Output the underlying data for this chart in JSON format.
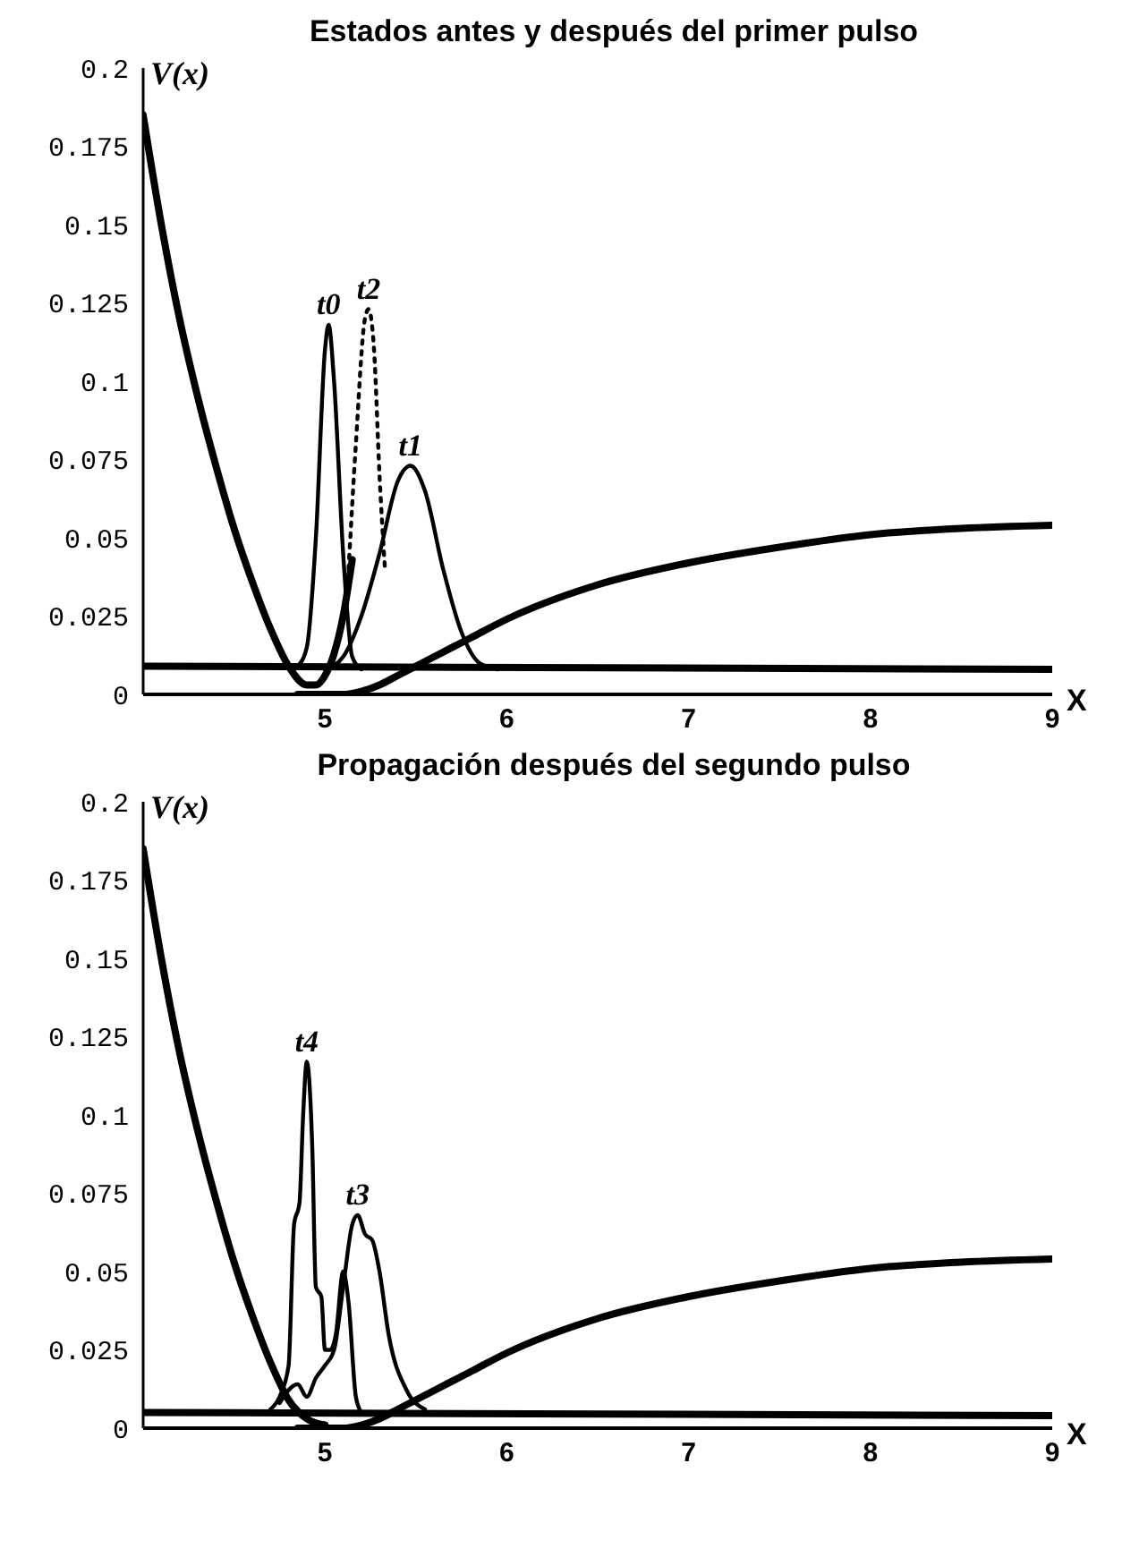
{
  "chart_data": [
    {
      "type": "line",
      "title": "Estados antes y después del primer pulso",
      "xlabel": "X",
      "ylabel": "V(x)",
      "xlim": [
        4,
        9
      ],
      "xticks": [
        5,
        6,
        7,
        8,
        9
      ],
      "ylim": [
        0,
        0.2
      ],
      "yticks": [
        0,
        0.025,
        0.05,
        0.075,
        0.1,
        0.125,
        0.15,
        0.175,
        0.2
      ],
      "grid": false,
      "legend": false,
      "marker": "none",
      "series": [
        {
          "color": "#000000",
          "x": [
            4,
            4.1,
            4.2,
            4.3,
            4.4,
            4.5,
            4.6,
            4.7,
            4.8,
            4.9,
            4.95,
            5.0,
            5.05,
            5.1,
            5.15
          ],
          "values": [
            0.185,
            0.15,
            0.12,
            0.095,
            0.073,
            0.053,
            0.036,
            0.021,
            0.009,
            0.003,
            0.003,
            0.006,
            0.013,
            0.025,
            0.043
          ]
        },
        {
          "color": "#000000",
          "x": [
            4.85,
            5.0,
            5.1,
            5.2,
            5.3,
            5.4,
            5.6,
            5.8,
            6,
            6.5,
            7,
            7.5,
            8,
            8.5,
            9
          ],
          "values": [
            0.0,
            0.0,
            0.0,
            0.001,
            0.003,
            0.006,
            0.012,
            0.018,
            0.024,
            0.035,
            0.042,
            0.047,
            0.051,
            0.053,
            0.054
          ]
        },
        {
          "color": "#000000",
          "x": [
            4,
            9
          ],
          "values": [
            0.009,
            0.008
          ]
        },
        {
          "name": "t0",
          "color": "#000000",
          "x": [
            4.85,
            4.9,
            4.95,
            5.0,
            5.02,
            5.05,
            5.1,
            5.15,
            5.2
          ],
          "values": [
            0.009,
            0.015,
            0.05,
            0.11,
            0.118,
            0.1,
            0.045,
            0.012,
            0.008
          ]
        },
        {
          "name": "t2",
          "color": "#000000",
          "line_style": "dotted",
          "x": [
            5.13,
            5.17,
            5.22,
            5.24,
            5.27,
            5.3,
            5.33
          ],
          "values": [
            0.04,
            0.08,
            0.12,
            0.123,
            0.11,
            0.07,
            0.04
          ]
        },
        {
          "name": "t1",
          "color": "#000000",
          "x": [
            5.0,
            5.1,
            5.2,
            5.3,
            5.4,
            5.47,
            5.55,
            5.65,
            5.75,
            5.85,
            5.95
          ],
          "values": [
            0.008,
            0.012,
            0.025,
            0.045,
            0.068,
            0.073,
            0.065,
            0.04,
            0.02,
            0.01,
            0.008
          ]
        }
      ]
    },
    {
      "type": "line",
      "title": "Propagación después del segundo pulso",
      "xlabel": "X",
      "ylabel": "V(x)",
      "xlim": [
        4,
        9
      ],
      "xticks": [
        5,
        6,
        7,
        8,
        9
      ],
      "ylim": [
        0,
        0.2
      ],
      "yticks": [
        0,
        0.025,
        0.05,
        0.075,
        0.1,
        0.125,
        0.15,
        0.175,
        0.2
      ],
      "grid": false,
      "legend": false,
      "marker": "none",
      "series": [
        {
          "color": "#000000",
          "x": [
            4,
            4.1,
            4.2,
            4.3,
            4.4,
            4.5,
            4.6,
            4.7,
            4.8,
            4.9,
            5.0
          ],
          "values": [
            0.185,
            0.15,
            0.12,
            0.095,
            0.073,
            0.053,
            0.036,
            0.021,
            0.009,
            0.003,
            0.001
          ]
        },
        {
          "color": "#000000",
          "x": [
            4.85,
            5.0,
            5.1,
            5.2,
            5.3,
            5.4,
            5.6,
            5.8,
            6,
            6.5,
            7,
            7.5,
            8,
            8.5,
            9
          ],
          "values": [
            0.0,
            0.0,
            0.0,
            0.001,
            0.003,
            0.006,
            0.012,
            0.018,
            0.024,
            0.035,
            0.042,
            0.047,
            0.051,
            0.053,
            0.054
          ]
        },
        {
          "color": "#000000",
          "x": [
            4,
            9
          ],
          "values": [
            0.005,
            0.004
          ]
        },
        {
          "name": "t4",
          "color": "#000000",
          "x": [
            4.7,
            4.75,
            4.8,
            4.83,
            4.86,
            4.88,
            4.9,
            4.93,
            4.95,
            4.98,
            5.0,
            5.03,
            5.06,
            5.1,
            5.13,
            5.17,
            5.2
          ],
          "values": [
            0.006,
            0.01,
            0.02,
            0.065,
            0.072,
            0.1,
            0.117,
            0.09,
            0.045,
            0.042,
            0.025,
            0.025,
            0.03,
            0.05,
            0.04,
            0.01,
            0.005
          ]
        },
        {
          "name": "t3",
          "color": "#000000",
          "x": [
            4.75,
            4.85,
            4.9,
            4.95,
            5.0,
            5.05,
            5.1,
            5.15,
            5.18,
            5.22,
            5.26,
            5.3,
            5.35,
            5.45,
            5.55
          ],
          "values": [
            0.008,
            0.014,
            0.01,
            0.016,
            0.02,
            0.025,
            0.045,
            0.065,
            0.068,
            0.062,
            0.06,
            0.05,
            0.03,
            0.012,
            0.006
          ]
        }
      ]
    }
  ]
}
